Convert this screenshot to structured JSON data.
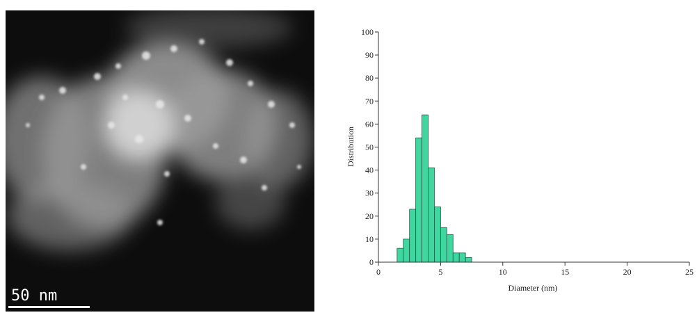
{
  "image": {
    "scale_label": "50 nm"
  },
  "chart_data": {
    "type": "histogram",
    "xlabel": "Diameter (nm)",
    "ylabel": "Distribution",
    "bins": [
      1.5,
      2,
      2.5,
      3,
      3.5,
      4,
      4.5,
      5,
      5.5,
      6,
      6.5,
      7,
      7.5
    ],
    "values": [
      6,
      10,
      23,
      54,
      64,
      41,
      24,
      15,
      12,
      4,
      4,
      2
    ],
    "color": "#3fd6a0",
    "xlim": [
      0,
      25
    ],
    "xticks": [
      0,
      5,
      10,
      15,
      20,
      25
    ],
    "ylim": [
      0,
      100
    ],
    "yticks": [
      0,
      10,
      20,
      30,
      40,
      50,
      60,
      70,
      80,
      90,
      100
    ]
  }
}
